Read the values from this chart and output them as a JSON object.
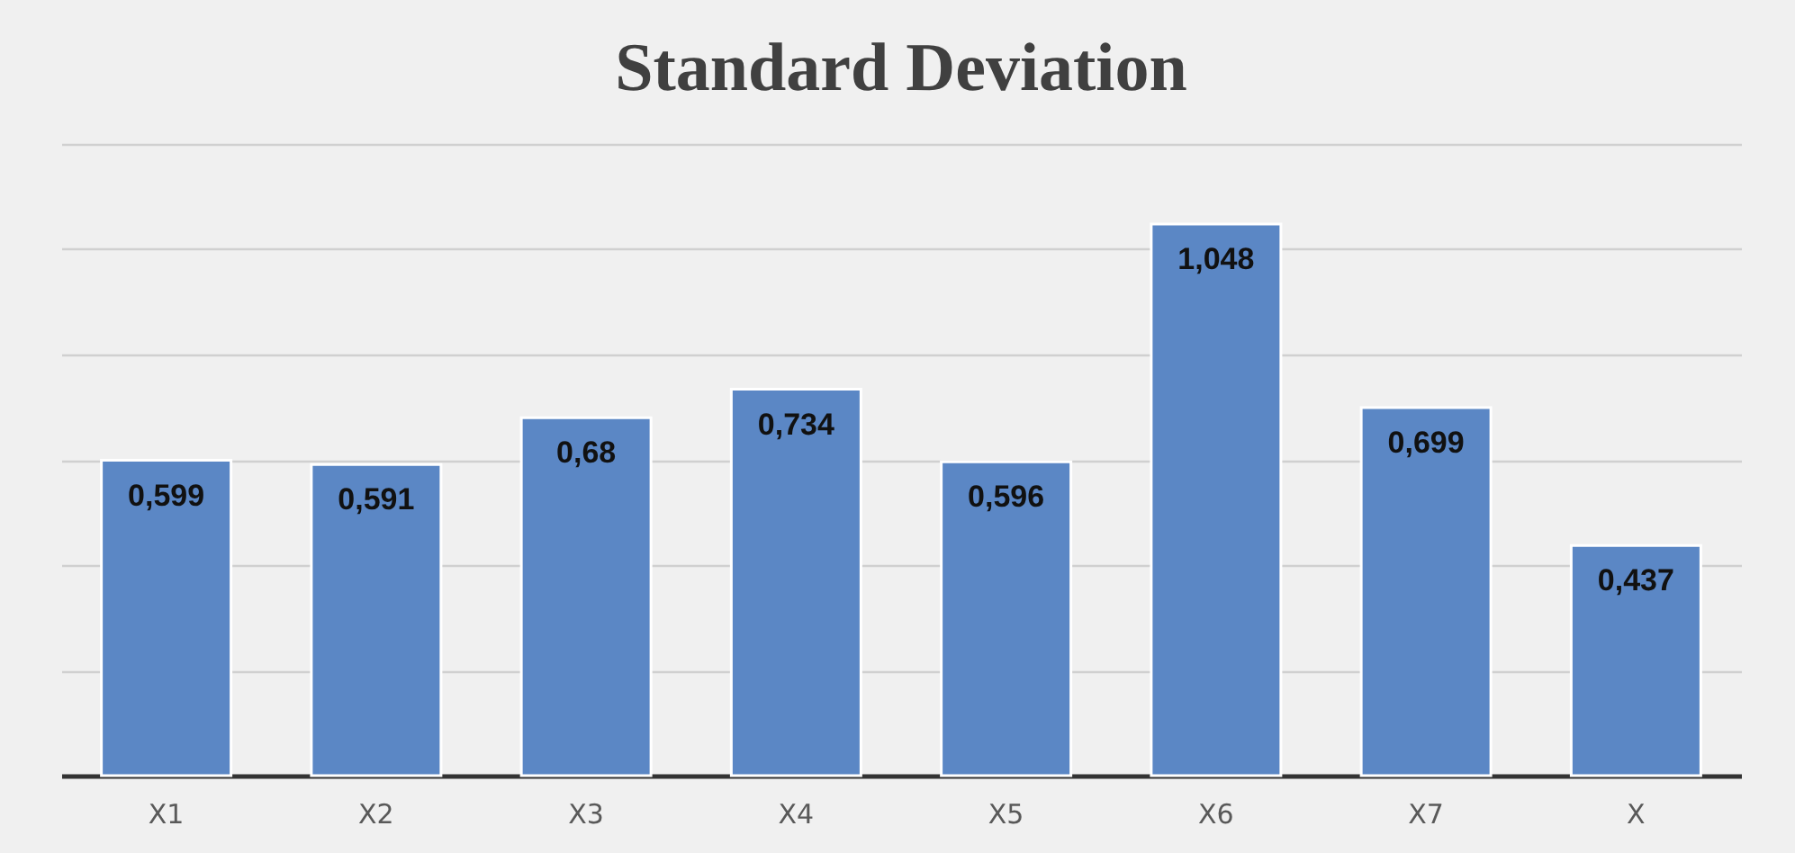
{
  "chart_data": {
    "type": "bar",
    "title": "Standard Deviation",
    "categories": [
      "X1",
      "X2",
      "X3",
      "X4",
      "X5",
      "X6",
      "X7",
      "X"
    ],
    "values": [
      0.599,
      0.591,
      0.68,
      0.734,
      0.596,
      1.048,
      0.699,
      0.437
    ],
    "value_labels": [
      "0,599",
      "0,591",
      "0,68",
      "0,734",
      "0,596",
      "1,048",
      "0,699",
      "0,437"
    ],
    "color": "#5b87c5",
    "ylim": [
      0,
      1.2
    ],
    "yticks": [
      {
        "value": 0,
        "label": null
      },
      {
        "value": 0.2,
        "label": null
      },
      {
        "value": 0.4,
        "label": null
      },
      {
        "value": 0.6,
        "label": null
      },
      {
        "value": 0.8,
        "label": null
      },
      {
        "value": 1.0,
        "label": null
      },
      {
        "value": 1.2,
        "label": null
      }
    ],
    "grid": "y",
    "tick_labels": "x"
  }
}
